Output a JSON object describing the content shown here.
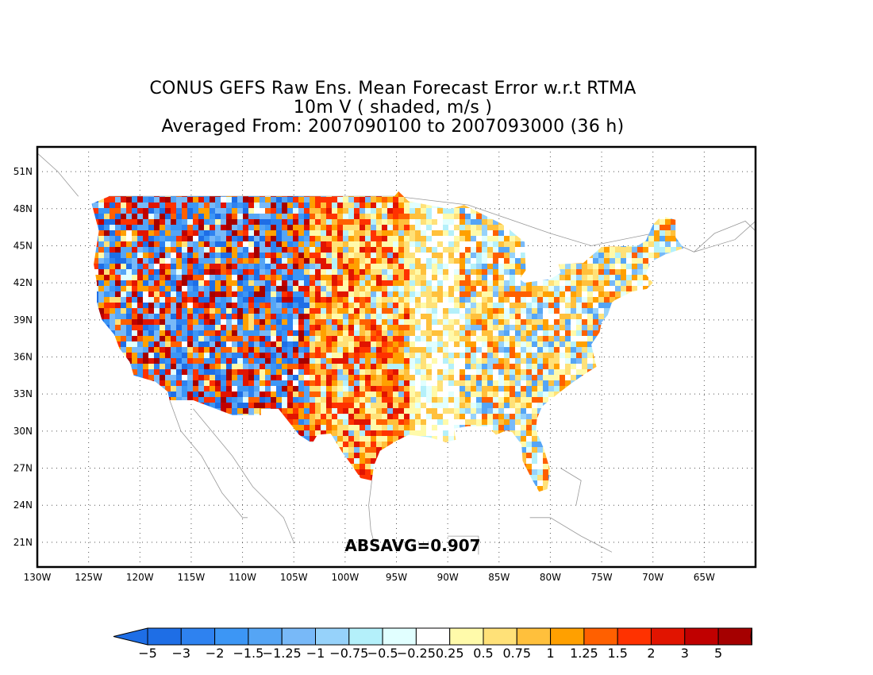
{
  "title": {
    "line1": "CONUS GEFS Raw Ens. Mean Forecast Error w.r.t RTMA",
    "line2": "10m V ( shaded, m/s )",
    "line3": "Averaged From: 2007090100 to 2007093000 (36 h)"
  },
  "map": {
    "region": "CONUS",
    "variable": "10m V forecast error",
    "units": "m/s",
    "lon_range": [
      -130,
      -60
    ],
    "lat_range": [
      19,
      53
    ],
    "lat_ticks": [
      {
        "value": 51,
        "label": "51N"
      },
      {
        "value": 48,
        "label": "48N"
      },
      {
        "value": 45,
        "label": "45N"
      },
      {
        "value": 42,
        "label": "42N"
      },
      {
        "value": 39,
        "label": "39N"
      },
      {
        "value": 36,
        "label": "36N"
      },
      {
        "value": 33,
        "label": "33N"
      },
      {
        "value": 30,
        "label": "30N"
      },
      {
        "value": 27,
        "label": "27N"
      },
      {
        "value": 24,
        "label": "24N"
      },
      {
        "value": 21,
        "label": "21N"
      }
    ],
    "lon_ticks": [
      {
        "value": -130,
        "label": "130W"
      },
      {
        "value": -125,
        "label": "125W"
      },
      {
        "value": -120,
        "label": "120W"
      },
      {
        "value": -115,
        "label": "115W"
      },
      {
        "value": -110,
        "label": "110W"
      },
      {
        "value": -105,
        "label": "105W"
      },
      {
        "value": -100,
        "label": "100W"
      },
      {
        "value": -95,
        "label": "95W"
      },
      {
        "value": -90,
        "label": "90W"
      },
      {
        "value": -85,
        "label": "85W"
      },
      {
        "value": -80,
        "label": "80W"
      },
      {
        "value": -75,
        "label": "75W"
      },
      {
        "value": -70,
        "label": "70W"
      },
      {
        "value": -65,
        "label": "65W"
      }
    ],
    "grid": "dotted",
    "stat_text": "ABSAVG=0.907"
  },
  "colorbar": {
    "labels": [
      "-5",
      "-3",
      "-2",
      "-1.5",
      "-1.25",
      "-1",
      "-0.75",
      "-0.5",
      "-0.25",
      "0.25",
      "0.5",
      "0.75",
      "1",
      "1.25",
      "1.5",
      "2",
      "3",
      "5"
    ],
    "colors": [
      "#1e6ee6",
      "#2e82f0",
      "#3c96f5",
      "#55a5f5",
      "#78b9f8",
      "#96d2fa",
      "#b4f0fa",
      "#e1ffff",
      "#ffffff",
      "#fffaaa",
      "#ffe178",
      "#ffc03c",
      "#ffa000",
      "#ff6000",
      "#ff3200",
      "#e11400",
      "#c00000",
      "#a50000"
    ]
  }
}
